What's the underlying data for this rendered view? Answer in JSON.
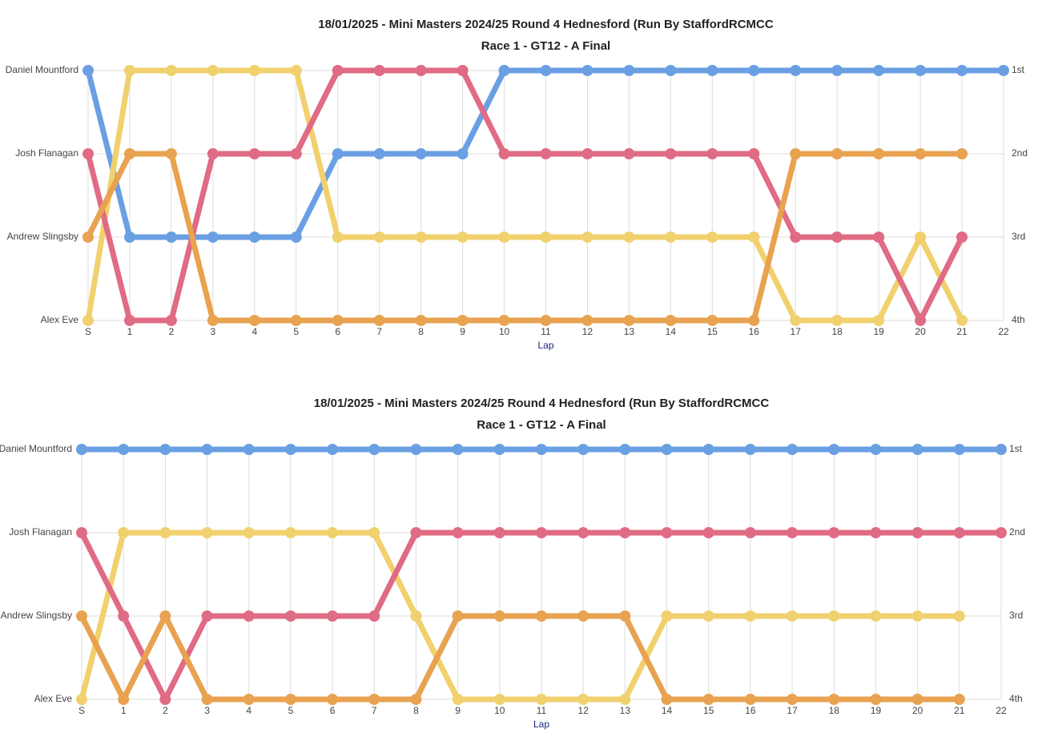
{
  "chart_data": [
    {
      "type": "line",
      "title": "18/01/2025 - Mini Masters 2024/25 Round 4 Hednesford (Run By StaffordRCMCC",
      "subtitle": "Race 1 - GT12 - A Final",
      "xlabel": "Lap",
      "categories": [
        "S",
        "1",
        "2",
        "3",
        "4",
        "5",
        "6",
        "7",
        "8",
        "9",
        "10",
        "11",
        "12",
        "13",
        "14",
        "15",
        "16",
        "17",
        "18",
        "19",
        "20",
        "21",
        "22"
      ],
      "series": [
        {
          "color": "#6a9fe3",
          "values": [
            1,
            3,
            3,
            3,
            3,
            3,
            2,
            2,
            2,
            2,
            1,
            1,
            1,
            1,
            1,
            1,
            1,
            1,
            1,
            1,
            1,
            1,
            1
          ]
        },
        {
          "color": "#f1d06e",
          "values": [
            4,
            1,
            1,
            1,
            1,
            1,
            3,
            3,
            3,
            3,
            3,
            3,
            3,
            3,
            3,
            3,
            3,
            4,
            4,
            4,
            3,
            4,
            null
          ]
        },
        {
          "color": "#e06b84",
          "values": [
            2,
            4,
            4,
            2,
            2,
            2,
            1,
            1,
            1,
            1,
            2,
            2,
            2,
            2,
            2,
            2,
            2,
            3,
            3,
            3,
            4,
            3,
            null
          ]
        },
        {
          "color": "#e8a250",
          "values": [
            3,
            2,
            2,
            4,
            4,
            4,
            4,
            4,
            4,
            4,
            4,
            4,
            4,
            4,
            4,
            4,
            4,
            2,
            2,
            2,
            2,
            2,
            null
          ]
        }
      ],
      "ylim": [
        4,
        1
      ],
      "yticks": [
        {
          "value": 1,
          "label": "Daniel Mountford"
        },
        {
          "value": 2,
          "label": "Josh Flanagan"
        },
        {
          "value": 3,
          "label": "Andrew Slingsby"
        },
        {
          "value": 4,
          "label": "Alex Eve"
        }
      ],
      "y2lim": [
        4,
        1
      ],
      "y2ticks": [
        {
          "value": 1,
          "label": "1st"
        },
        {
          "value": 2,
          "label": "2nd"
        },
        {
          "value": 3,
          "label": "3rd"
        },
        {
          "value": 4,
          "label": "4th"
        }
      ],
      "grid": true
    },
    {
      "type": "line",
      "title": "18/01/2025 - Mini Masters 2024/25 Round 4 Hednesford (Run By StaffordRCMCC",
      "subtitle": "Race 1 - GT12 - A Final",
      "xlabel": "Lap",
      "categories": [
        "S",
        "1",
        "2",
        "3",
        "4",
        "5",
        "6",
        "7",
        "8",
        "9",
        "10",
        "11",
        "12",
        "13",
        "14",
        "15",
        "16",
        "17",
        "18",
        "19",
        "20",
        "21",
        "22"
      ],
      "series": [
        {
          "color": "#6a9fe3",
          "values": [
            1,
            1,
            1,
            1,
            1,
            1,
            1,
            1,
            1,
            1,
            1,
            1,
            1,
            1,
            1,
            1,
            1,
            1,
            1,
            1,
            1,
            1,
            1
          ]
        },
        {
          "color": "#f1d06e",
          "values": [
            4,
            2,
            2,
            2,
            2,
            2,
            2,
            2,
            3,
            4,
            4,
            4,
            4,
            4,
            3,
            3,
            3,
            3,
            3,
            3,
            3,
            3,
            null
          ]
        },
        {
          "color": "#e06b84",
          "values": [
            2,
            3,
            4,
            3,
            3,
            3,
            3,
            3,
            2,
            2,
            2,
            2,
            2,
            2,
            2,
            2,
            2,
            2,
            2,
            2,
            2,
            2,
            2
          ]
        },
        {
          "color": "#e8a250",
          "values": [
            3,
            4,
            3,
            4,
            4,
            4,
            4,
            4,
            4,
            3,
            3,
            3,
            3,
            3,
            4,
            4,
            4,
            4,
            4,
            4,
            4,
            4,
            null
          ]
        }
      ],
      "ylim": [
        4,
        1
      ],
      "yticks": [
        {
          "value": 1,
          "label": "Daniel Mountford"
        },
        {
          "value": 2,
          "label": "Josh Flanagan"
        },
        {
          "value": 3,
          "label": "Andrew Slingsby"
        },
        {
          "value": 4,
          "label": "Alex Eve"
        }
      ],
      "y2lim": [
        4,
        1
      ],
      "y2ticks": [
        {
          "value": 1,
          "label": "1st"
        },
        {
          "value": 2,
          "label": "2nd"
        },
        {
          "value": 3,
          "label": "3rd"
        },
        {
          "value": 4,
          "label": "4th"
        }
      ],
      "grid": true
    }
  ]
}
